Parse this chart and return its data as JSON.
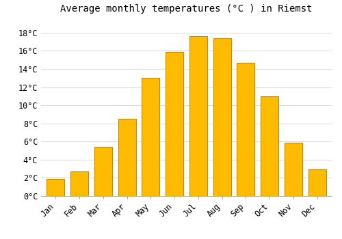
{
  "title": "Average monthly temperatures (°C ) in Riemst",
  "months": [
    "Jan",
    "Feb",
    "Mar",
    "Apr",
    "May",
    "Jun",
    "Jul",
    "Aug",
    "Sep",
    "Oct",
    "Nov",
    "Dec"
  ],
  "temperatures": [
    1.9,
    2.7,
    5.4,
    8.5,
    13.0,
    15.9,
    17.6,
    17.4,
    14.7,
    11.0,
    5.9,
    2.9
  ],
  "bar_color": "#FFBB00",
  "bar_edge_color": "#CC8800",
  "background_color": "#FFFFFF",
  "grid_color": "#DDDDDD",
  "ylim": [
    0,
    19.5
  ],
  "yticks": [
    0,
    2,
    4,
    6,
    8,
    10,
    12,
    14,
    16,
    18
  ],
  "ytick_labels": [
    "0°C",
    "2°C",
    "4°C",
    "6°C",
    "8°C",
    "10°C",
    "12°C",
    "14°C",
    "16°C",
    "18°C"
  ],
  "title_fontsize": 10,
  "tick_fontsize": 8.5,
  "font_family": "monospace",
  "bar_width": 0.75
}
